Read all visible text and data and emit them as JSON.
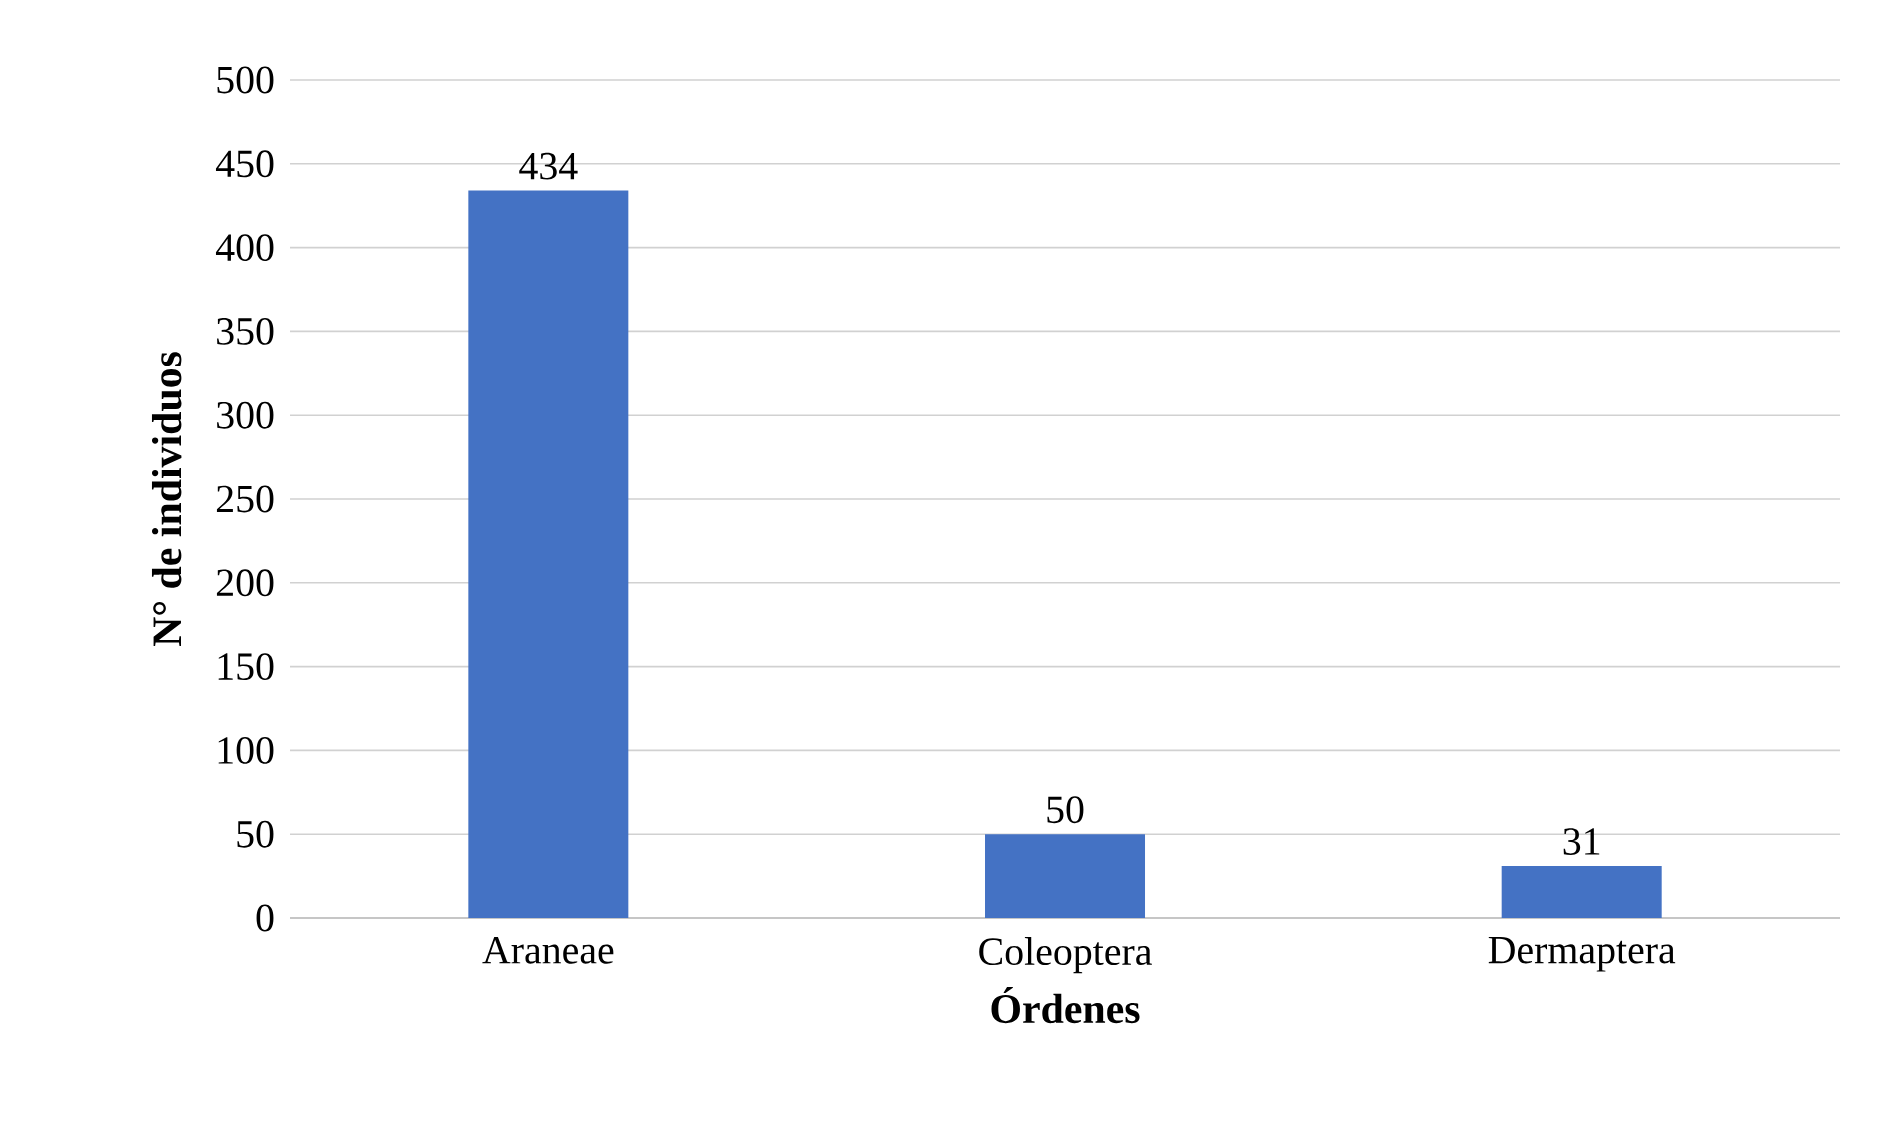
{
  "chart_data": {
    "type": "bar",
    "xlabel": "Órdenes",
    "ylabel": "N° de individuos",
    "categories": [
      "Araneae",
      "Coleoptera",
      "Dermaptera"
    ],
    "values": [
      434,
      50,
      31
    ],
    "color": "#4472c4",
    "ylim": [
      0,
      500
    ],
    "yticks": [
      0,
      50,
      100,
      150,
      200,
      250,
      300,
      350,
      400,
      450,
      500
    ],
    "grid": "y",
    "data_labels": true
  }
}
